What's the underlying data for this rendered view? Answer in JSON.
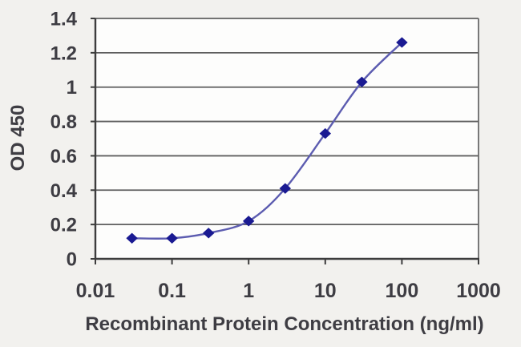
{
  "chart_data": {
    "type": "line",
    "xlabel": "Recombinant Protein Concentration (ng/ml)",
    "ylabel": "OD 450",
    "x_scale": "log",
    "xlim": [
      0.01,
      1000
    ],
    "ylim": [
      0,
      1.4
    ],
    "grid": "horizontal",
    "legend": "none",
    "marker": "diamond",
    "series": [
      {
        "x": [
          0.03,
          0.1,
          0.3,
          1,
          3,
          10,
          30,
          100
        ],
        "y": [
          0.12,
          0.12,
          0.15,
          0.22,
          0.41,
          0.73,
          1.03,
          1.26
        ]
      }
    ],
    "x_ticks": {
      "values": [
        0.01,
        0.1,
        1,
        10,
        100,
        1000
      ],
      "labels": [
        "0.01",
        "0.1",
        "1",
        "10",
        "100",
        "1000"
      ]
    },
    "y_ticks": {
      "values": [
        0,
        0.2,
        0.4,
        0.6,
        0.8,
        1,
        1.2,
        1.4
      ],
      "labels": [
        "0",
        "0.2",
        "0.4",
        "0.6",
        "0.8",
        "1",
        "1.2",
        "1.4"
      ]
    },
    "colors": {
      "line": "#5c5cb0",
      "marker": "#1a1a92",
      "grid": "#5f5f5f",
      "axis": "#3d3d3d",
      "border": "#6a6a6a",
      "text": "#3e3d43",
      "plot_fill": "#fdfdfc",
      "background": "#f2f1ee"
    }
  }
}
